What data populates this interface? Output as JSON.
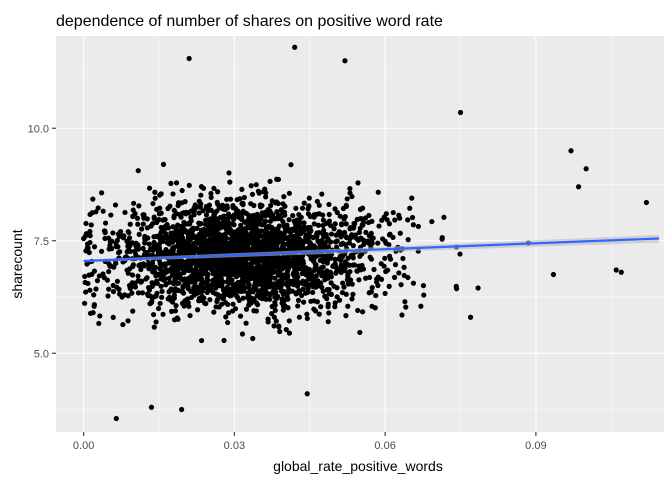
{
  "chart_data": {
    "type": "scatter",
    "title": "dependence of number of shares on positive word rate",
    "xlabel": "global_rate_positive_words",
    "ylabel": "sharecount",
    "xlim": [
      -0.0055,
      0.1155
    ],
    "ylim": [
      3.25,
      12.05
    ],
    "xticks": [
      0.0,
      0.03,
      0.06,
      0.09
    ],
    "xtick_labels": [
      "0.00",
      "0.03",
      "0.06",
      "0.09"
    ],
    "yticks": [
      5.0,
      7.5,
      10.0
    ],
    "ytick_labels": [
      "5.0",
      "7.5",
      "10.0"
    ],
    "grid": true,
    "panel_background": "#ebebeb",
    "grid_color": "#ffffff",
    "point_color": "#000000",
    "trend": {
      "method": "linear",
      "color": "#3366ff",
      "band_color": "#bdbdbd",
      "x": [
        0.0,
        0.1145
      ],
      "y": [
        7.05,
        7.55
      ],
      "se_band": [
        [
          7.02,
          7.08
        ],
        [
          7.46,
          7.63
        ]
      ]
    },
    "notable_points": [
      {
        "x": 0.021,
        "y": 11.55
      },
      {
        "x": 0.042,
        "y": 11.8
      },
      {
        "x": 0.052,
        "y": 11.5
      },
      {
        "x": 0.075,
        "y": 10.35
      },
      {
        "x": 0.097,
        "y": 9.5
      },
      {
        "x": 0.1,
        "y": 9.1
      },
      {
        "x": 0.0985,
        "y": 8.7
      },
      {
        "x": 0.112,
        "y": 8.35
      },
      {
        "x": 0.0,
        "y": 7.55
      },
      {
        "x": 0.0065,
        "y": 3.55
      },
      {
        "x": 0.0195,
        "y": 3.75
      },
      {
        "x": 0.0135,
        "y": 3.8
      },
      {
        "x": 0.0445,
        "y": 4.1
      },
      {
        "x": 0.0785,
        "y": 6.45
      },
      {
        "x": 0.077,
        "y": 5.8
      },
      {
        "x": 0.106,
        "y": 6.85
      },
      {
        "x": 0.107,
        "y": 6.8
      },
      {
        "x": 0.0935,
        "y": 6.75
      },
      {
        "x": 0.0885,
        "y": 7.45
      }
    ],
    "dense_cloud": {
      "n_points": 2600,
      "x_mean": 0.032,
      "x_sd": 0.0135,
      "y_mean": 7.15,
      "y_sd": 0.6
    }
  }
}
